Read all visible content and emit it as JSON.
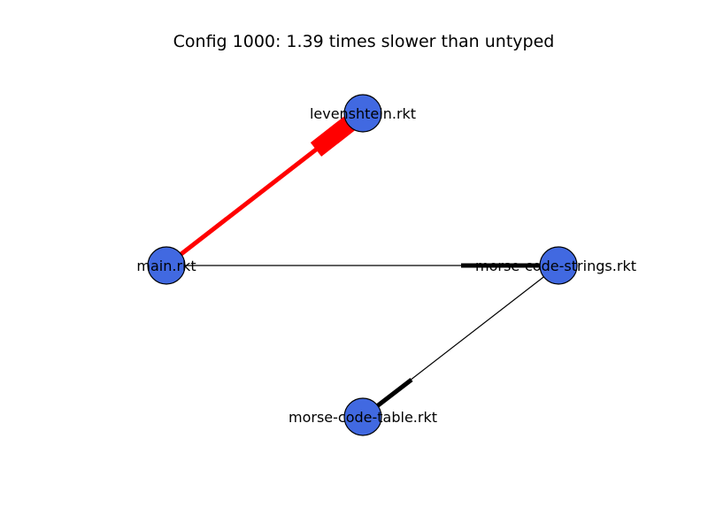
{
  "title": "Config 1000: 1.39 times slower than untyped",
  "colors": {
    "node_fill": "#4169e1",
    "node_stroke": "#000000",
    "typed_edge": "#000000",
    "boundary_edge": "#ff0000"
  },
  "nodes": [
    {
      "id": "levenshtein",
      "label": "levenshtein.rkt"
    },
    {
      "id": "main",
      "label": "main.rkt"
    },
    {
      "id": "strings",
      "label": "morse-code-strings.rkt"
    },
    {
      "id": "table",
      "label": "morse-code-table.rkt"
    }
  ],
  "edges": [
    {
      "from": "main",
      "to": "levenshtein",
      "color": "red"
    },
    {
      "from": "main",
      "to": "strings",
      "color": "black"
    },
    {
      "from": "strings",
      "to": "table",
      "color": "black"
    }
  ]
}
